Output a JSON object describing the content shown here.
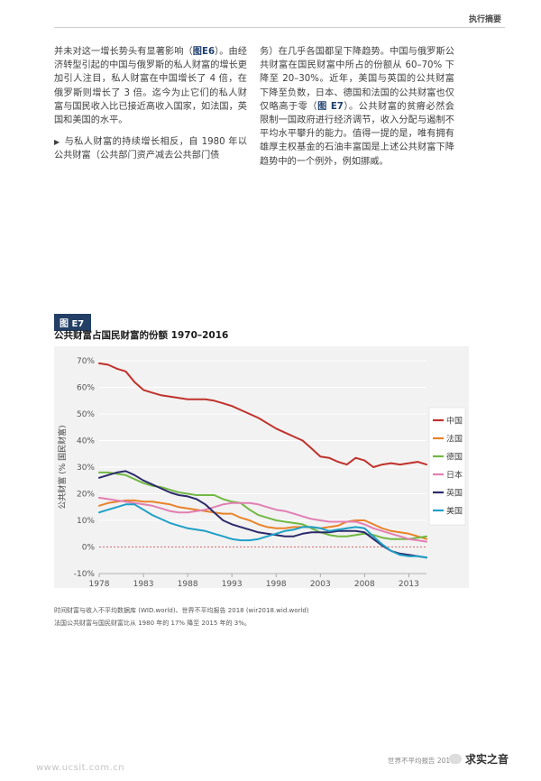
{
  "header": {
    "section": "执行摘要"
  },
  "text": {
    "left_p1_a": "并未对这一增长势头有显著影响（",
    "left_p1_ref": "图E6",
    "left_p1_b": "）。由经济转型引起的中国与俄罗斯的私人财富的增长更加引人注目，私人财富在中国增长了 4 倍，在俄罗斯则增长了 3 倍。迄今为止它们的私人财富与国民收入比已接近高收入国家，如法国，英国和美国的水平。",
    "left_p2": "与私人财富的持续增长相反，自 1980 年以公共财富（公共部门资产减去公共部门债",
    "right_p1_a": "务）在几乎各国都呈下降趋势。中国与俄罗斯公共财富在国民财富中所占的份额从 60–70% 下降至 20–30%。近年，美国与英国的公共财富下降至负数，日本、德国和法国的公共财富也仅仅略高于零（",
    "right_p1_ref": "图 E7",
    "right_p1_b": "）。公共财富的贫瘠必然会限制一国政府进行经济调节，收入分配与遏制不平均水平攀升的能力。值得一提的是，唯有拥有雄厚主权基金的石油丰富国是上述公共财富下降趋势中的一个例外，例如挪威。"
  },
  "figure": {
    "tag": "图 E7",
    "title": "公共财富占国民财富的份额 1970–2016",
    "source": "时间财富与收入不平均数据库 (WID.world)、世界不平均报告 2018 (wir2018.wid.world)",
    "note": "法国公共财富与国民财富比从 1980 年的 17% 降至 2015 年的 3%。"
  },
  "chart_data": {
    "type": "line",
    "title": "公共财富占国民财富的份额 1970–2016",
    "ylabel": "公共财富 (% 国民财富)",
    "xlabel": "",
    "xlim": [
      1978,
      2015
    ],
    "ylim": [
      -10,
      70
    ],
    "x_ticks": [
      "1978",
      "1983",
      "1988",
      "1993",
      "1998",
      "2003",
      "2008",
      "2013"
    ],
    "y_ticks": [
      "70%",
      "60%",
      "50%",
      "40%",
      "30%",
      "20%",
      "10%",
      "0%",
      "-10%"
    ],
    "y_tick_values": [
      70,
      60,
      50,
      40,
      30,
      20,
      10,
      0,
      -10
    ],
    "x_tick_values": [
      1978,
      1983,
      1988,
      1993,
      1998,
      2003,
      2008,
      2013
    ],
    "grid": "horizontal",
    "zero_line": "dashed red",
    "legend_position": "right",
    "series": [
      {
        "name": "中国",
        "color": "#c0312b",
        "points": [
          [
            1978,
            69
          ],
          [
            1979,
            68.5
          ],
          [
            1980,
            67
          ],
          [
            1981,
            66
          ],
          [
            1982,
            62
          ],
          [
            1983,
            59
          ],
          [
            1984,
            58
          ],
          [
            1985,
            57
          ],
          [
            1986,
            56.5
          ],
          [
            1987,
            56
          ],
          [
            1988,
            55.5
          ],
          [
            1989,
            55.5
          ],
          [
            1990,
            55.5
          ],
          [
            1991,
            55
          ],
          [
            1992,
            54
          ],
          [
            1993,
            53
          ],
          [
            1994,
            51.5
          ],
          [
            1995,
            50
          ],
          [
            1996,
            48.5
          ],
          [
            1997,
            46.5
          ],
          [
            1998,
            44.5
          ],
          [
            1999,
            43
          ],
          [
            2000,
            41.5
          ],
          [
            2001,
            40
          ],
          [
            2002,
            37
          ],
          [
            2003,
            34
          ],
          [
            2004,
            33.5
          ],
          [
            2005,
            32
          ],
          [
            2006,
            31
          ],
          [
            2007,
            33.5
          ],
          [
            2008,
            32.5
          ],
          [
            2009,
            30
          ],
          [
            2010,
            31
          ],
          [
            2011,
            31.5
          ],
          [
            2012,
            31
          ],
          [
            2013,
            31.5
          ],
          [
            2014,
            32
          ],
          [
            2015,
            31
          ]
        ]
      },
      {
        "name": "法国",
        "color": "#e8832a",
        "points": [
          [
            1978,
            15.5
          ],
          [
            1979,
            16.5
          ],
          [
            1980,
            17
          ],
          [
            1981,
            17.5
          ],
          [
            1982,
            17.5
          ],
          [
            1983,
            17
          ],
          [
            1984,
            17
          ],
          [
            1985,
            16.5
          ],
          [
            1986,
            16
          ],
          [
            1987,
            15
          ],
          [
            1988,
            14.5
          ],
          [
            1989,
            14
          ],
          [
            1990,
            13.5
          ],
          [
            1991,
            13
          ],
          [
            1992,
            12.5
          ],
          [
            1993,
            12.5
          ],
          [
            1994,
            11
          ],
          [
            1995,
            10
          ],
          [
            1996,
            8.5
          ],
          [
            1997,
            7.5
          ],
          [
            1998,
            7
          ],
          [
            1999,
            7
          ],
          [
            2000,
            7.5
          ],
          [
            2001,
            7.5
          ],
          [
            2002,
            7.5
          ],
          [
            2003,
            7
          ],
          [
            2004,
            7.5
          ],
          [
            2005,
            8
          ],
          [
            2006,
            9.5
          ],
          [
            2007,
            10
          ],
          [
            2008,
            10
          ],
          [
            2009,
            8.5
          ],
          [
            2010,
            7
          ],
          [
            2011,
            6
          ],
          [
            2012,
            5.5
          ],
          [
            2013,
            5
          ],
          [
            2014,
            4
          ],
          [
            2015,
            3
          ]
        ]
      },
      {
        "name": "德国",
        "color": "#72b844",
        "points": [
          [
            1978,
            28
          ],
          [
            1979,
            28
          ],
          [
            1980,
            27.5
          ],
          [
            1981,
            27
          ],
          [
            1982,
            25.5
          ],
          [
            1983,
            24
          ],
          [
            1984,
            23
          ],
          [
            1985,
            22.5
          ],
          [
            1986,
            21.5
          ],
          [
            1987,
            20.5
          ],
          [
            1988,
            20
          ],
          [
            1989,
            19.5
          ],
          [
            1990,
            19.5
          ],
          [
            1991,
            19.5
          ],
          [
            1992,
            18
          ],
          [
            1993,
            17
          ],
          [
            1994,
            16.5
          ],
          [
            1995,
            14
          ],
          [
            1996,
            12
          ],
          [
            1997,
            11
          ],
          [
            1998,
            10
          ],
          [
            1999,
            9.5
          ],
          [
            2000,
            9
          ],
          [
            2001,
            8.5
          ],
          [
            2002,
            7
          ],
          [
            2003,
            5.5
          ],
          [
            2004,
            4.5
          ],
          [
            2005,
            4
          ],
          [
            2006,
            4
          ],
          [
            2007,
            4.5
          ],
          [
            2008,
            5
          ],
          [
            2009,
            4.5
          ],
          [
            2010,
            3.5
          ],
          [
            2011,
            3
          ],
          [
            2012,
            3
          ],
          [
            2013,
            3
          ],
          [
            2014,
            3.5
          ],
          [
            2015,
            4
          ]
        ]
      },
      {
        "name": "日本",
        "color": "#e17fb3",
        "points": [
          [
            1978,
            18.5
          ],
          [
            1979,
            18
          ],
          [
            1980,
            17.5
          ],
          [
            1981,
            17
          ],
          [
            1982,
            16.5
          ],
          [
            1983,
            16
          ],
          [
            1984,
            15.5
          ],
          [
            1985,
            14.5
          ],
          [
            1986,
            13.5
          ],
          [
            1987,
            13
          ],
          [
            1988,
            13
          ],
          [
            1989,
            13.5
          ],
          [
            1990,
            14
          ],
          [
            1991,
            15
          ],
          [
            1992,
            16
          ],
          [
            1993,
            16.5
          ],
          [
            1994,
            16.5
          ],
          [
            1995,
            16.5
          ],
          [
            1996,
            16
          ],
          [
            1997,
            15
          ],
          [
            1998,
            14
          ],
          [
            1999,
            13.5
          ],
          [
            2000,
            12.5
          ],
          [
            2001,
            11.5
          ],
          [
            2002,
            10.5
          ],
          [
            2003,
            10
          ],
          [
            2004,
            9.5
          ],
          [
            2005,
            9.5
          ],
          [
            2006,
            9.5
          ],
          [
            2007,
            9.5
          ],
          [
            2008,
            8.5
          ],
          [
            2009,
            7
          ],
          [
            2010,
            6
          ],
          [
            2011,
            5
          ],
          [
            2012,
            4
          ],
          [
            2013,
            3
          ],
          [
            2014,
            2.5
          ],
          [
            2015,
            2
          ]
        ]
      },
      {
        "name": "英国",
        "color": "#2b2a6b",
        "points": [
          [
            1978,
            26
          ],
          [
            1979,
            27
          ],
          [
            1980,
            28
          ],
          [
            1981,
            28.5
          ],
          [
            1982,
            27
          ],
          [
            1983,
            25
          ],
          [
            1984,
            23.5
          ],
          [
            1985,
            22
          ],
          [
            1986,
            20.5
          ],
          [
            1987,
            19.5
          ],
          [
            1988,
            19
          ],
          [
            1989,
            18
          ],
          [
            1990,
            16
          ],
          [
            1991,
            13
          ],
          [
            1992,
            10
          ],
          [
            1993,
            8.5
          ],
          [
            1994,
            7.5
          ],
          [
            1995,
            6.5
          ],
          [
            1996,
            5.5
          ],
          [
            1997,
            5
          ],
          [
            1998,
            4.5
          ],
          [
            1999,
            4
          ],
          [
            2000,
            4
          ],
          [
            2001,
            5
          ],
          [
            2002,
            5.5
          ],
          [
            2003,
            5.5
          ],
          [
            2004,
            5.5
          ],
          [
            2005,
            6
          ],
          [
            2006,
            6
          ],
          [
            2007,
            6
          ],
          [
            2008,
            5.5
          ],
          [
            2009,
            3
          ],
          [
            2010,
            0.5
          ],
          [
            2011,
            -1.5
          ],
          [
            2012,
            -2.5
          ],
          [
            2013,
            -3
          ],
          [
            2014,
            -3.5
          ],
          [
            2015,
            -4
          ]
        ]
      },
      {
        "name": "美国",
        "color": "#1f9fc6",
        "points": [
          [
            1978,
            13
          ],
          [
            1979,
            14
          ],
          [
            1980,
            15
          ],
          [
            1981,
            16
          ],
          [
            1982,
            16
          ],
          [
            1983,
            14
          ],
          [
            1984,
            12
          ],
          [
            1985,
            10.5
          ],
          [
            1986,
            9
          ],
          [
            1987,
            8
          ],
          [
            1988,
            7
          ],
          [
            1989,
            6.5
          ],
          [
            1990,
            6
          ],
          [
            1991,
            5
          ],
          [
            1992,
            4
          ],
          [
            1993,
            3
          ],
          [
            1994,
            2.5
          ],
          [
            1995,
            2.5
          ],
          [
            1996,
            3
          ],
          [
            1997,
            4
          ],
          [
            1998,
            5
          ],
          [
            1999,
            6
          ],
          [
            2000,
            6.5
          ],
          [
            2001,
            7.5
          ],
          [
            2002,
            7.5
          ],
          [
            2003,
            7
          ],
          [
            2004,
            6
          ],
          [
            2005,
            6.5
          ],
          [
            2006,
            7
          ],
          [
            2007,
            7.5
          ],
          [
            2008,
            7
          ],
          [
            2009,
            4
          ],
          [
            2010,
            1
          ],
          [
            2011,
            -1.5
          ],
          [
            2012,
            -3
          ],
          [
            2013,
            -3.5
          ],
          [
            2014,
            -3.5
          ],
          [
            2015,
            -4
          ]
        ]
      }
    ]
  },
  "footer": {
    "url": "www.ucsit.com.cn",
    "report": "世界不平均报告 2018",
    "watermark": "求实之音"
  }
}
